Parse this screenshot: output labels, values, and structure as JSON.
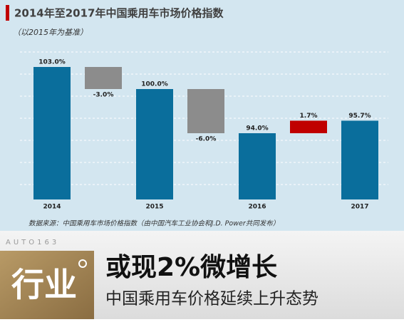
{
  "chart_data": {
    "type": "waterfall",
    "title": "2014年至2017年中国乘用车市场价格指数",
    "subtitle": "（以2015年为基准）",
    "source": "数据来源：中国乘用车市场价格指数（由中国汽车工业协会和J.D. Power共同发布）",
    "categories": [
      "2014",
      null,
      "2015",
      null,
      "2016",
      null,
      "2017"
    ],
    "measure": [
      "total",
      "relative",
      "total",
      "relative",
      "total",
      "relative",
      "total"
    ],
    "values": [
      103.0,
      -3.0,
      100.0,
      -6.0,
      94.0,
      1.7,
      95.7
    ],
    "value_labels": [
      "103.0%",
      "-3.0%",
      "100.0%",
      "-6.0%",
      "94.0%",
      "1.7%",
      "95.7%"
    ],
    "colors": [
      "#0a6e9c",
      "#8c8c8c",
      "#0a6e9c",
      "#8c8c8c",
      "#0a6e9c",
      "#c00000",
      "#0a6e9c"
    ],
    "ylim": [
      85,
      106
    ]
  },
  "banner": {
    "brand": "AUTO163",
    "section": "行业",
    "headline": "或现2%微增长",
    "subheadline": "中国乘用车价格延续上升态势"
  }
}
